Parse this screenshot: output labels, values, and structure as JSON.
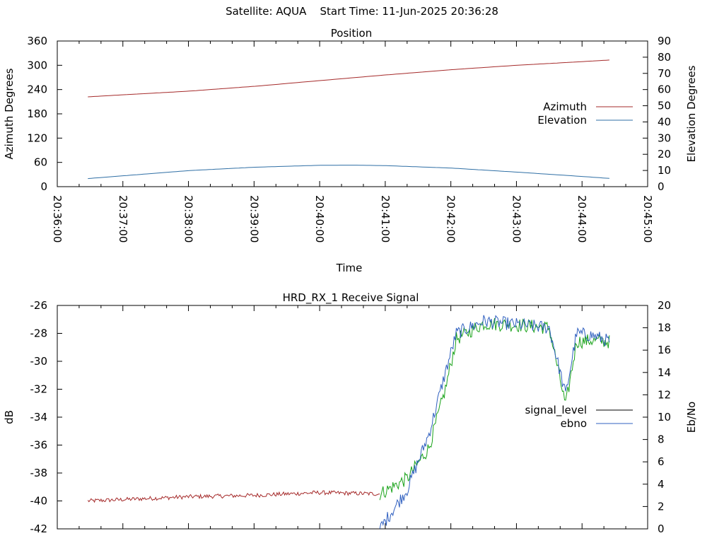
{
  "header": {
    "title": "Satellite: AQUA    Start Time: 11-Jun-2025 20:36:28"
  },
  "colors": {
    "azimuth": "#a52a2a",
    "elevation": "#2f6fa5",
    "signal_level": "#000000",
    "ebno": "#3060c0",
    "signal_green": "#1aa31a"
  },
  "chart_data": [
    {
      "type": "line",
      "title": "Position",
      "xlabel": "Time",
      "ylabel": "Azimuth Degrees",
      "y2label": "Elevation Degrees",
      "xlim": [
        "20:36:00",
        "20:45:00"
      ],
      "xticks": [
        "20:36:00",
        "20:37:00",
        "20:38:00",
        "20:39:00",
        "20:40:00",
        "20:41:00",
        "20:42:00",
        "20:43:00",
        "20:44:00",
        "20:45:00"
      ],
      "ylim": [
        0,
        360
      ],
      "yticks": [
        "0",
        "60",
        "120",
        "180",
        "240",
        "300",
        "360"
      ],
      "y2lim": [
        0,
        90
      ],
      "y2ticks": [
        "0",
        "10",
        "20",
        "30",
        "40",
        "50",
        "60",
        "70",
        "80",
        "90"
      ],
      "legend_position": "right",
      "grid": false,
      "series": [
        {
          "name": "Azimuth",
          "axis": "y1",
          "x": [
            "20:36:28",
            "20:37:00",
            "20:38:00",
            "20:39:00",
            "20:40:00",
            "20:41:00",
            "20:42:00",
            "20:43:00",
            "20:44:00",
            "20:44:25"
          ],
          "values": [
            222,
            227,
            236,
            248,
            262,
            276,
            289,
            300,
            309,
            313
          ]
        },
        {
          "name": "Elevation",
          "axis": "y2",
          "x": [
            "20:36:28",
            "20:37:00",
            "20:38:00",
            "20:39:00",
            "20:40:00",
            "20:40:30",
            "20:41:00",
            "20:42:00",
            "20:43:00",
            "20:44:00",
            "20:44:25"
          ],
          "values": [
            5.0,
            6.7,
            9.9,
            12.0,
            13.2,
            13.3,
            13.0,
            11.5,
            9.0,
            6.3,
            5.1
          ]
        }
      ]
    },
    {
      "type": "line",
      "title": "HRD_RX_1 Receive Signal",
      "ylabel": "dB",
      "y2label": "Eb/No",
      "xlim": [
        "20:36:00",
        "20:45:00"
      ],
      "ylim": [
        -42,
        -26
      ],
      "yticks": [
        "-26",
        "-28",
        "-30",
        "-32",
        "-34",
        "-36",
        "-38",
        "-40",
        "-42"
      ],
      "y2lim": [
        0,
        20
      ],
      "y2ticks": [
        "0",
        "2",
        "4",
        "6",
        "8",
        "10",
        "12",
        "14",
        "16",
        "18",
        "20"
      ],
      "legend_position": "right",
      "grid": false,
      "series": [
        {
          "name": "signal_level",
          "axis": "y1",
          "x": [
            "20:36:28",
            "20:37:00",
            "20:38:00",
            "20:39:00",
            "20:40:00",
            "20:40:55",
            "20:41:20",
            "20:41:40",
            "20:41:55",
            "20:42:05",
            "20:42:30",
            "20:43:00",
            "20:43:30",
            "20:43:45",
            "20:43:55",
            "20:44:10",
            "20:44:25"
          ],
          "values": [
            -40.0,
            -39.9,
            -39.7,
            -39.6,
            -39.4,
            -39.5,
            -38.4,
            -36.2,
            -32.0,
            -28.4,
            -27.3,
            -27.4,
            -27.6,
            -33.2,
            -28.6,
            -28.5,
            -28.6
          ]
        },
        {
          "name": "ebno",
          "axis": "y2",
          "x": [
            "20:40:55",
            "20:41:20",
            "20:41:40",
            "20:41:55",
            "20:42:05",
            "20:42:30",
            "20:43:00",
            "20:43:30",
            "20:43:45",
            "20:43:55",
            "20:44:10",
            "20:44:25"
          ],
          "values": [
            0.0,
            3.5,
            8.5,
            14.0,
            17.5,
            18.6,
            18.3,
            18.0,
            12.0,
            17.5,
            17.3,
            16.8
          ]
        }
      ]
    }
  ]
}
